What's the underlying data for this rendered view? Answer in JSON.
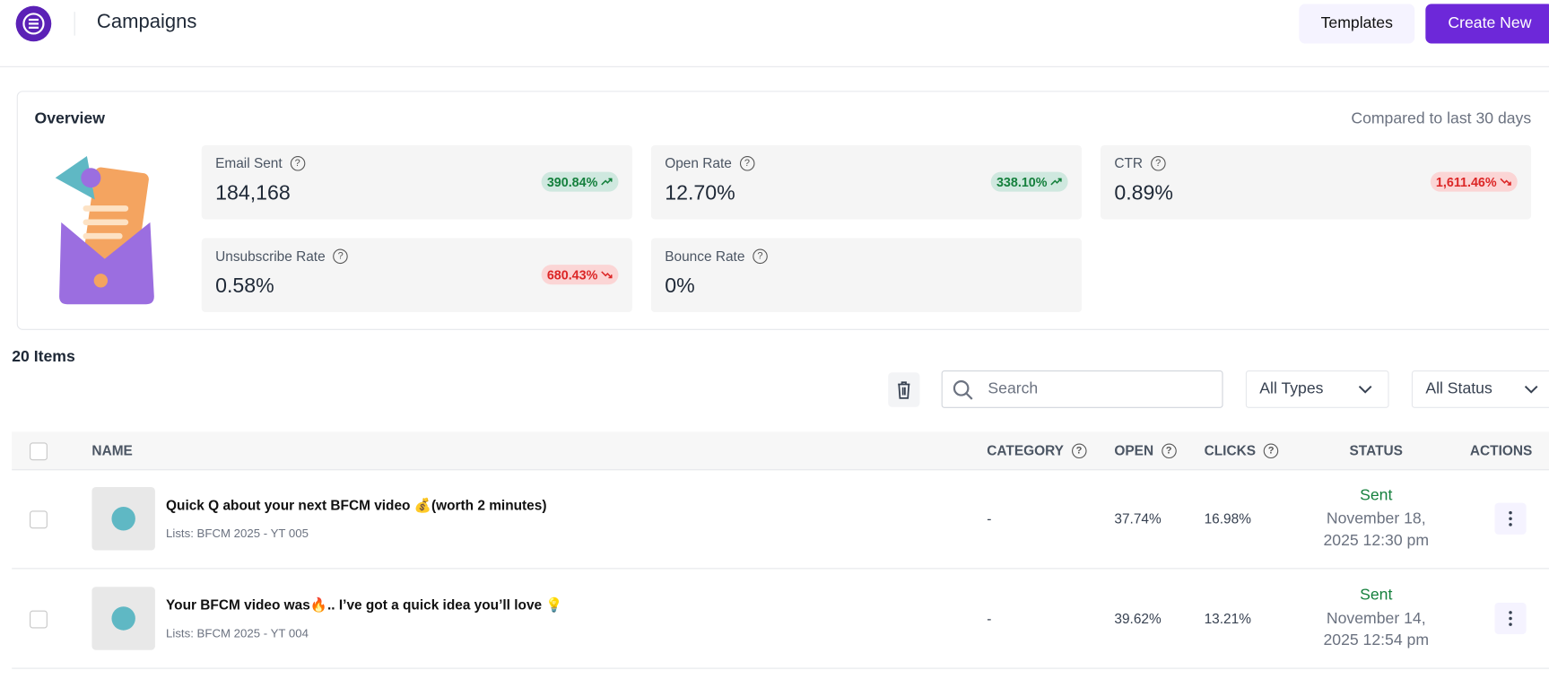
{
  "header": {
    "title": "Campaigns",
    "buttons": [
      "Templates",
      "Create New"
    ]
  },
  "overview": {
    "title": "Overview",
    "compare_note": "Compared to last 30 days",
    "metrics": [
      {
        "label": "Email Sent",
        "value": "184,168",
        "change": "390.84%",
        "trend": "up"
      },
      {
        "label": "Open Rate",
        "value": "12.70%",
        "change": "338.10%",
        "trend": "up"
      },
      {
        "label": "CTR",
        "value": "0.89%",
        "change": "1,611.46%",
        "trend": "down"
      },
      {
        "label": "Unsubscribe Rate",
        "value": "0.58%",
        "change": "680.43%",
        "trend": "down"
      },
      {
        "label": "Bounce Rate",
        "value": "0%",
        "change": null,
        "trend": null
      }
    ]
  },
  "list": {
    "count_label": "20 Items",
    "search_placeholder": "Search",
    "filters": [
      "All Types",
      "All Status"
    ]
  },
  "table": {
    "headers": [
      "NAME",
      "CATEGORY",
      "OPEN",
      "CLICKS",
      "STATUS",
      "ACTIONS"
    ],
    "rows": [
      {
        "name": "Quick Q about your next BFCM video 💰(worth 2 minutes)",
        "lists": "Lists: BFCM 2025 - YT 005",
        "category": "-",
        "open": "37.74%",
        "clicks": "16.98%",
        "status": "Sent",
        "date": "November 18, 2025 12:30 pm"
      },
      {
        "name": "Your BFCM video was🔥.. I’ve got a quick idea you’ll love 💡",
        "lists": "Lists: BFCM 2025 - YT 004",
        "category": "-",
        "open": "39.62%",
        "clicks": "13.21%",
        "status": "Sent",
        "date": "November 14, 2025 12:54 pm"
      }
    ]
  }
}
